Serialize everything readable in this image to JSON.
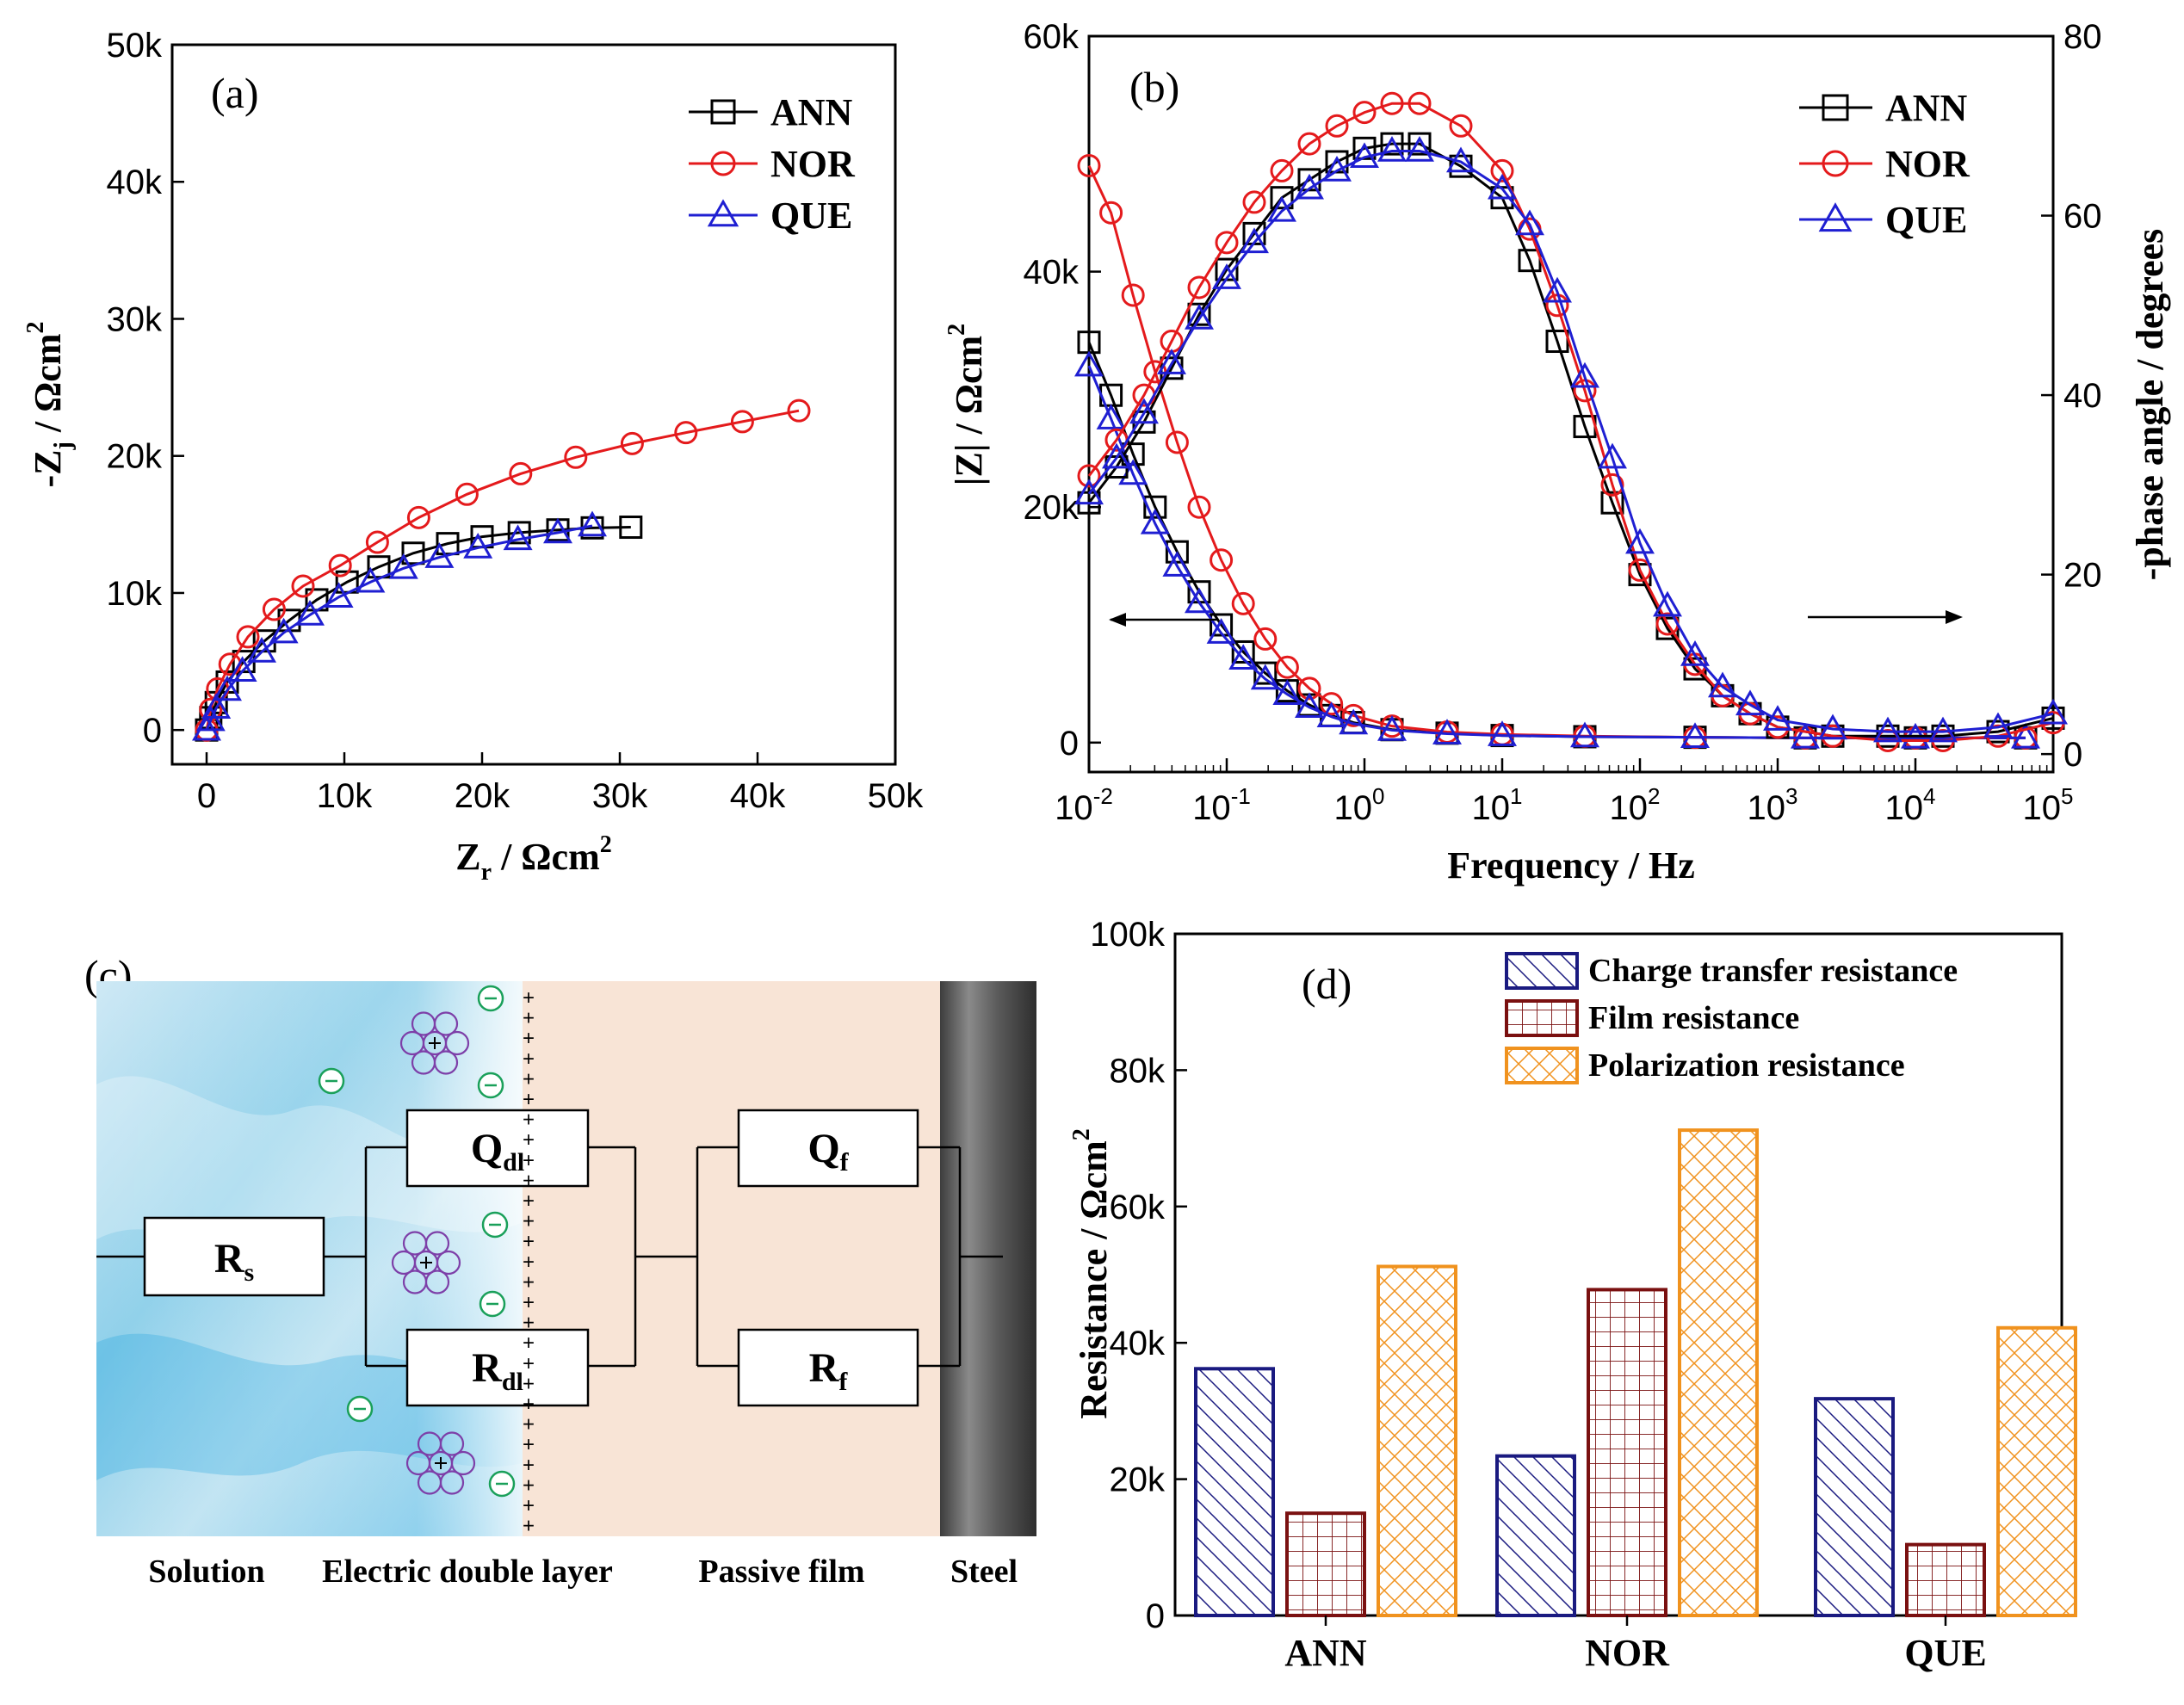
{
  "chart_data": [
    {
      "panel": "(a)",
      "type": "scatter",
      "xlabel": "Z",
      "xlabel_sub": "r",
      "xlabel_unit": " / Ωcm",
      "xlabel_sup": "2",
      "ylabel": "-Z",
      "ylabel_sub": "j",
      "ylabel_unit": " / Ωcm",
      "ylabel_sup": "2",
      "xlim": [
        -2500,
        50000
      ],
      "ylim": [
        -2500,
        50000
      ],
      "xticks": [
        0,
        10000,
        20000,
        30000,
        40000,
        50000
      ],
      "xtick_labels": [
        "0",
        "10k",
        "20k",
        "30k",
        "40k",
        "50k"
      ],
      "yticks": [
        0,
        10000,
        20000,
        30000,
        40000,
        50000
      ],
      "ytick_labels": [
        "0",
        "10k",
        "20k",
        "30k",
        "40k",
        "50k"
      ],
      "legend_position": "top-right",
      "series": [
        {
          "name": "ANN",
          "color": "#000000",
          "marker": "square",
          "x": [
            0,
            300,
            700,
            1500,
            2700,
            4200,
            6000,
            8000,
            10200,
            12500,
            15000,
            17500,
            20000,
            22700,
            25500,
            28000,
            30800
          ],
          "y": [
            0,
            900,
            2000,
            3500,
            5000,
            6500,
            8000,
            9500,
            10800,
            11900,
            12900,
            13600,
            14100,
            14400,
            14600,
            14750,
            14800
          ]
        },
        {
          "name": "NOR",
          "color": "#e41a1c",
          "marker": "circle",
          "x": [
            0,
            300,
            800,
            1700,
            3000,
            4900,
            7000,
            9700,
            12400,
            15400,
            18900,
            22800,
            26800,
            30900,
            34800,
            38900,
            43000
          ],
          "y": [
            0,
            1500,
            3000,
            4800,
            6800,
            8800,
            10500,
            12000,
            13700,
            15500,
            17200,
            18700,
            19900,
            20900,
            21700,
            22500,
            23300
          ]
        },
        {
          "name": "QUE",
          "color": "#1f1fd2",
          "marker": "triangle",
          "x": [
            0,
            300,
            700,
            1500,
            2600,
            4000,
            5600,
            7500,
            9600,
            11900,
            14300,
            16900,
            19700,
            22600,
            25500,
            28000
          ],
          "y": [
            0,
            700,
            1600,
            2900,
            4300,
            5700,
            7100,
            8400,
            9700,
            10800,
            11800,
            12600,
            13300,
            13900,
            14400,
            14900
          ]
        }
      ]
    },
    {
      "panel": "(b)",
      "type": "line",
      "xlabel": "Frequency / Hz",
      "ylabel": "|Z| / Ωcm",
      "ylabel_sup": "2",
      "y2label": "-phase angle / degrees",
      "xscale": "log",
      "xlim": [
        0.01,
        100000
      ],
      "ylim": [
        -2500,
        60000
      ],
      "y2lim": [
        -2,
        80
      ],
      "xtick_base": "10",
      "xtick_exponents": [
        "-2",
        "-1",
        "0",
        "1",
        "2",
        "3",
        "4",
        "5"
      ],
      "yticks": [
        0,
        20000,
        40000,
        60000
      ],
      "ytick_labels": [
        "0",
        "20k",
        "40k",
        "60k"
      ],
      "y2ticks": [
        0,
        20,
        40,
        60,
        80
      ],
      "y2tick_labels": [
        "0",
        "20",
        "40",
        "60",
        "80"
      ],
      "legend_position": "top-right",
      "impedance_series": [
        {
          "name": "ANN",
          "color": "#000000",
          "marker": "square",
          "log_f": [
            -2,
            -1.84,
            -1.68,
            -1.52,
            -1.36,
            -1.2,
            -1.04,
            -0.88,
            -0.72,
            -0.56,
            -0.4,
            -0.24,
            -0.08,
            0.2,
            0.6,
            1.0,
            1.6,
            2.4,
            3.2,
            4.0,
            4.8
          ],
          "values": [
            34000,
            29500,
            24500,
            20000,
            16200,
            12800,
            10000,
            7700,
            5900,
            4400,
            3200,
            2300,
            1700,
            1100,
            800,
            600,
            500,
            450,
            400,
            400,
            400
          ]
        },
        {
          "name": "NOR",
          "color": "#e41a1c",
          "marker": "circle",
          "log_f": [
            -2,
            -1.84,
            -1.68,
            -1.52,
            -1.36,
            -1.2,
            -1.04,
            -0.88,
            -0.72,
            -0.56,
            -0.4,
            -0.24,
            -0.08,
            0.2,
            0.6,
            1.0,
            1.6,
            2.4,
            3.2,
            4.0,
            4.8
          ],
          "values": [
            49000,
            45000,
            38000,
            31500,
            25500,
            20000,
            15500,
            11800,
            8800,
            6400,
            4600,
            3300,
            2300,
            1400,
            900,
            700,
            550,
            450,
            400,
            400,
            400
          ]
        },
        {
          "name": "QUE",
          "color": "#1f1fd2",
          "marker": "triangle",
          "log_f": [
            -2,
            -1.84,
            -1.68,
            -1.52,
            -1.36,
            -1.2,
            -1.04,
            -0.88,
            -0.72,
            -0.56,
            -0.4,
            -0.24,
            -0.08,
            0.2,
            0.6,
            1.0,
            1.6,
            2.4,
            3.2,
            4.0,
            4.8
          ],
          "values": [
            32000,
            27500,
            22800,
            18600,
            15000,
            11900,
            9300,
            7100,
            5400,
            4100,
            3000,
            2200,
            1600,
            1050,
            750,
            600,
            500,
            450,
            400,
            400,
            400
          ]
        }
      ],
      "phase_series": [
        {
          "name": "ANN",
          "color": "#000000",
          "marker": "square",
          "log_f": [
            -2,
            -1.8,
            -1.6,
            -1.4,
            -1.2,
            -1.0,
            -0.8,
            -0.6,
            -0.4,
            -0.2,
            0.0,
            0.2,
            0.4,
            0.7,
            1.0,
            1.2,
            1.4,
            1.6,
            1.8,
            2.0,
            2.2,
            2.4,
            2.6,
            2.8,
            3.0,
            3.4,
            3.8,
            4.2,
            4.6,
            5.0
          ],
          "values": [
            28,
            32,
            37,
            43,
            49,
            54,
            58,
            62,
            64,
            66,
            67.5,
            68,
            68,
            65.5,
            62,
            55,
            46,
            36.5,
            28,
            20,
            14,
            9.5,
            6.5,
            4.5,
            3,
            2,
            2,
            2,
            2.5,
            4
          ]
        },
        {
          "name": "NOR",
          "color": "#e41a1c",
          "marker": "circle",
          "log_f": [
            -2,
            -1.8,
            -1.6,
            -1.4,
            -1.2,
            -1.0,
            -0.8,
            -0.6,
            -0.4,
            -0.2,
            0.0,
            0.2,
            0.4,
            0.7,
            1.0,
            1.2,
            1.4,
            1.6,
            1.8,
            2.0,
            2.2,
            2.4,
            2.6,
            2.8,
            3.0,
            3.4,
            3.8,
            4.2,
            4.6,
            5.0
          ],
          "values": [
            31,
            35,
            40,
            46,
            52,
            57,
            61.5,
            65,
            68,
            70,
            71.5,
            72.5,
            72.5,
            70,
            65,
            58.5,
            50,
            40.5,
            30,
            20.5,
            14.5,
            10,
            6.5,
            4.5,
            3,
            2,
            1.5,
            1.5,
            2,
            3.5
          ]
        },
        {
          "name": "QUE",
          "color": "#1f1fd2",
          "marker": "triangle",
          "log_f": [
            -2,
            -1.8,
            -1.6,
            -1.4,
            -1.2,
            -1.0,
            -0.8,
            -0.6,
            -0.4,
            -0.2,
            0.0,
            0.2,
            0.4,
            0.7,
            1.0,
            1.2,
            1.4,
            1.6,
            1.8,
            2.0,
            2.2,
            2.4,
            2.6,
            2.8,
            3.0,
            3.4,
            3.8,
            4.2,
            4.6,
            5.0
          ],
          "values": [
            29,
            33,
            38,
            43.5,
            48.5,
            53,
            57,
            60.5,
            63,
            65,
            66.5,
            67.2,
            67.2,
            66,
            63,
            59,
            51.5,
            42,
            33,
            23.5,
            16.5,
            11,
            7.5,
            5.5,
            3.8,
            2.8,
            2.5,
            2.5,
            3,
            4.5
          ]
        }
      ],
      "annotations": [
        {
          "type": "arrow",
          "direction": "left",
          "meaning": "left axis (|Z|)"
        },
        {
          "type": "arrow",
          "direction": "right",
          "meaning": "right axis (phase angle)"
        }
      ]
    },
    {
      "panel": "(d)",
      "type": "bar",
      "ylabel": "Resistance / Ωcm",
      "ylabel_sup": "2",
      "ylim": [
        0,
        100000
      ],
      "yticks": [
        0,
        20000,
        40000,
        60000,
        80000,
        100000
      ],
      "ytick_labels": [
        "0",
        "20k",
        "40k",
        "60k",
        "80k",
        "100k"
      ],
      "categories": [
        "ANN",
        "NOR",
        "QUE"
      ],
      "legend_position": "top-center",
      "series": [
        {
          "name": "Charge transfer resistance",
          "color": "#1a1a80",
          "hatch": "diagonal",
          "values": [
            36200,
            23400,
            31800
          ]
        },
        {
          "name": "Film resistance",
          "color": "#7a1010",
          "hatch": "grid",
          "values": [
            15000,
            47800,
            10400
          ]
        },
        {
          "name": "Polarization resistance",
          "color": "#f0921e",
          "hatch": "crosshatch",
          "values": [
            51200,
            71200,
            42200
          ]
        }
      ]
    }
  ],
  "diagram": {
    "panel": "(c)",
    "boxes": {
      "rs": {
        "main": "R",
        "sub": "s"
      },
      "qdl": {
        "main": "Q",
        "sub": "dl"
      },
      "rdl": {
        "main": "R",
        "sub": "dl"
      },
      "qf": {
        "main": "Q",
        "sub": "f"
      },
      "rf": {
        "main": "R",
        "sub": "f"
      }
    },
    "regions": [
      "Solution",
      "Electric double layer",
      "Passive film",
      "Steel"
    ],
    "plus_sign": "+",
    "anion_count": 7,
    "cation_cluster_count": 3,
    "colors": {
      "solution": "#8fd0ea",
      "film": "#f8e4d6",
      "steel": "#6f6f6f",
      "anion": "#1aa05a",
      "cation": "#7d3fa8"
    }
  }
}
